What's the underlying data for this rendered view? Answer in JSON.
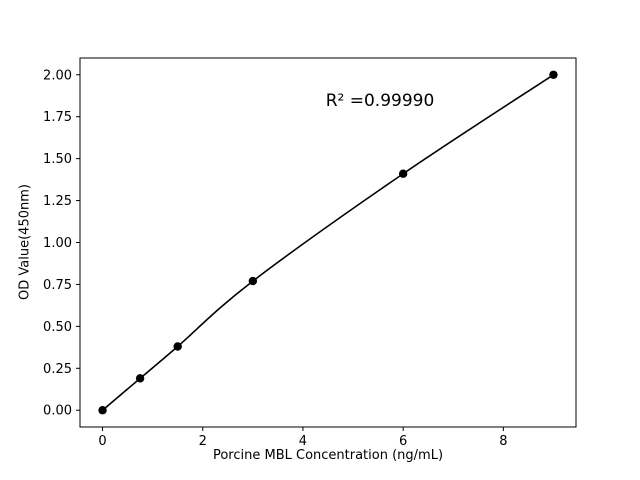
{
  "chart_data": {
    "type": "line",
    "title": "",
    "xlabel": "Porcine MBL Concentration (ng/mL)",
    "ylabel": "OD Value(450nm)",
    "annotation": "R² =0.99990",
    "annotation_xy": [
      5.5,
      1.82
    ],
    "x": [
      0,
      0.75,
      1.5,
      3,
      6,
      9
    ],
    "y": [
      0.0,
      0.19,
      0.38,
      0.77,
      1.41,
      2.0
    ],
    "xlim": [
      -0.45,
      9.45
    ],
    "ylim": [
      -0.1,
      2.1
    ],
    "xticks": [
      0,
      2,
      4,
      6,
      8
    ],
    "xtick_labels": [
      "0",
      "2",
      "4",
      "6",
      "8"
    ],
    "yticks": [
      0.0,
      0.25,
      0.5,
      0.75,
      1.0,
      1.25,
      1.5,
      1.75,
      2.0
    ],
    "ytick_labels": [
      "0.00",
      "0.25",
      "0.50",
      "0.75",
      "1.00",
      "1.25",
      "1.50",
      "1.75",
      "2.00"
    ],
    "grid": false,
    "legend": "none",
    "line_color": "#000000",
    "marker_color": "#000000",
    "axis_color": "#000000",
    "background": "#ffffff"
  }
}
